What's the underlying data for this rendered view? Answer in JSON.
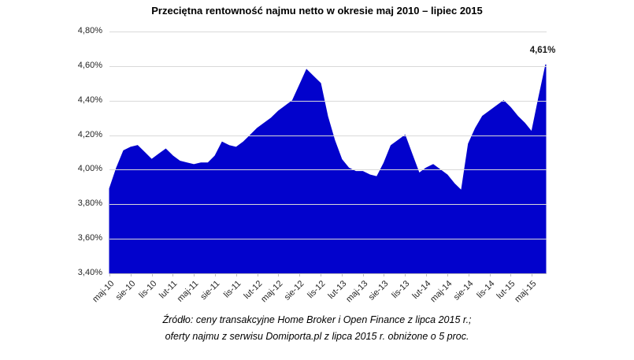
{
  "title": "Przeciętna rentowność najmu netto w okresie maj 2010 – lipiec 2015",
  "colors": {
    "area": "#0202cc",
    "gridline": "#d9d9d9",
    "axis": "#bfbfbf",
    "label_text": "#262626"
  },
  "chart_data": {
    "type": "area",
    "title": "Przeciętna rentowność najmu netto w okresie maj 2010 – lipiec 2015",
    "x": [
      "maj-10",
      "cze-10",
      "lip-10",
      "sie-10",
      "wrz-10",
      "paź-10",
      "lis-10",
      "gru-10",
      "sty-11",
      "lut-11",
      "mar-11",
      "kwi-11",
      "maj-11",
      "cze-11",
      "lip-11",
      "sie-11",
      "wrz-11",
      "paź-11",
      "lis-11",
      "gru-11",
      "sty-12",
      "lut-12",
      "mar-12",
      "kwi-12",
      "maj-12",
      "cze-12",
      "lip-12",
      "sie-12",
      "wrz-12",
      "paź-12",
      "lis-12",
      "gru-12",
      "sty-13",
      "lut-13",
      "mar-13",
      "kwi-13",
      "maj-13",
      "cze-13",
      "lip-13",
      "sie-13",
      "wrz-13",
      "paź-13",
      "lis-13",
      "gru-13",
      "sty-14",
      "lut-14",
      "mar-14",
      "kwi-14",
      "maj-14",
      "cze-14",
      "lip-14",
      "sie-14",
      "wrz-14",
      "paź-14",
      "lis-14",
      "gru-14",
      "sty-15",
      "lut-15",
      "mar-15",
      "kwi-15",
      "maj-15",
      "cze-15",
      "lip-15"
    ],
    "values": [
      3.89,
      4.01,
      4.11,
      4.13,
      4.14,
      4.1,
      4.06,
      4.09,
      4.12,
      4.08,
      4.05,
      4.04,
      4.03,
      4.04,
      4.04,
      4.08,
      4.16,
      4.14,
      4.13,
      4.16,
      4.2,
      4.24,
      4.27,
      4.3,
      4.34,
      4.37,
      4.4,
      4.49,
      4.58,
      4.54,
      4.5,
      4.31,
      4.17,
      4.06,
      4.01,
      3.99,
      3.99,
      3.97,
      3.96,
      4.04,
      4.14,
      4.17,
      4.2,
      4.09,
      3.98,
      4.01,
      4.03,
      4.0,
      3.97,
      3.92,
      3.88,
      4.15,
      4.24,
      4.31,
      4.34,
      4.37,
      4.4,
      4.36,
      4.31,
      4.27,
      4.22,
      4.42,
      4.61
    ],
    "x_tick_every": 3,
    "x_tick_labels": [
      "maj-10",
      "sie-10",
      "lis-10",
      "lut-11",
      "maj-11",
      "sie-11",
      "lis-11",
      "lut-12",
      "maj-12",
      "sie-12",
      "lis-12",
      "lut-13",
      "maj-13",
      "sie-13",
      "lis-13",
      "lut-14",
      "maj-14",
      "sie-14",
      "lis-14",
      "lut-15",
      "maj-15"
    ],
    "y_tick_labels": [
      "4,80%",
      "4,60%",
      "4,40%",
      "4,20%",
      "4,00%",
      "3,80%",
      "3,60%",
      "3,40%"
    ],
    "ylim": [
      3.4,
      4.8
    ],
    "y_step": 0.2,
    "grid": "horizontal",
    "legend": "none",
    "last_point_label": "4,61%"
  },
  "footer": {
    "line1": "Źródło: ceny transakcyjne Home Broker i Open Finance z lipca 2015 r.;",
    "line2": "oferty najmu z serwisu Domiporta.pl z lipca 2015 r. obniżone o 5 proc."
  }
}
